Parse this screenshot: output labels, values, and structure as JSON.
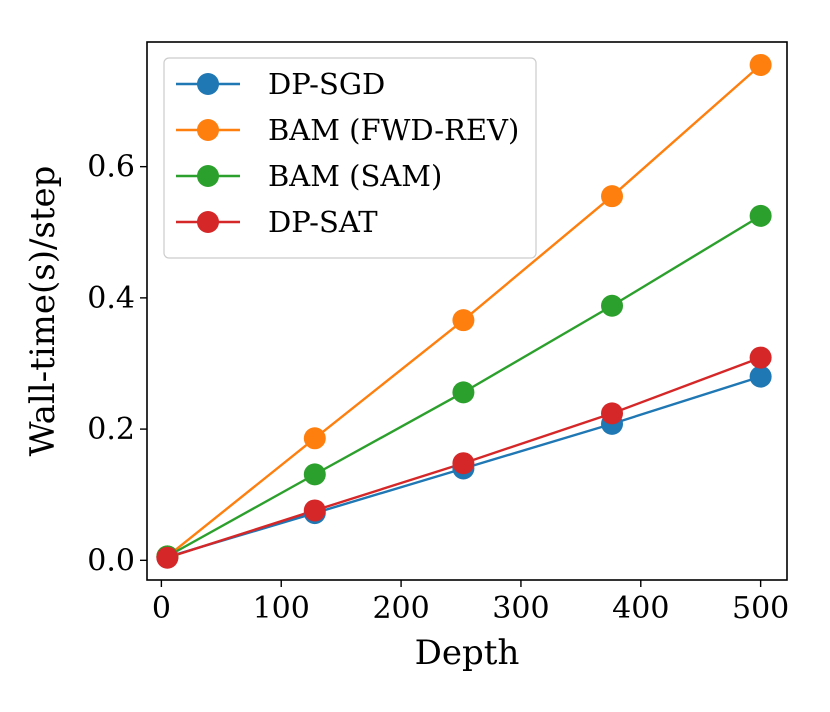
{
  "chart_data": {
    "type": "line",
    "title": "",
    "xlabel": "Depth",
    "ylabel": "Wall-time(s)/step",
    "xlim": [
      -12,
      522
    ],
    "ylim": [
      -0.03,
      0.79
    ],
    "xticks": [
      0,
      100,
      200,
      300,
      400,
      500
    ],
    "xtick_labels": [
      "0",
      "100",
      "200",
      "300",
      "400",
      "500"
    ],
    "yticks": [
      0.0,
      0.2,
      0.4,
      0.6
    ],
    "ytick_labels": [
      "0.0",
      "0.2",
      "0.4",
      "0.6"
    ],
    "x": [
      5,
      128,
      252,
      376,
      500
    ],
    "legend_position": "top-left",
    "series": [
      {
        "name": "DP-SGD",
        "color": "#1f77b4",
        "values": [
          0.005,
          0.072,
          0.14,
          0.208,
          0.28
        ]
      },
      {
        "name": "BAM (FWD-REV)",
        "color": "#ff7f0e",
        "values": [
          0.006,
          0.186,
          0.366,
          0.555,
          0.755
        ]
      },
      {
        "name": "BAM (SAM)",
        "color": "#2ca02c",
        "values": [
          0.006,
          0.131,
          0.256,
          0.388,
          0.525
        ]
      },
      {
        "name": "DP-SAT",
        "color": "#d62728",
        "values": [
          0.004,
          0.076,
          0.148,
          0.224,
          0.309
        ]
      }
    ]
  }
}
